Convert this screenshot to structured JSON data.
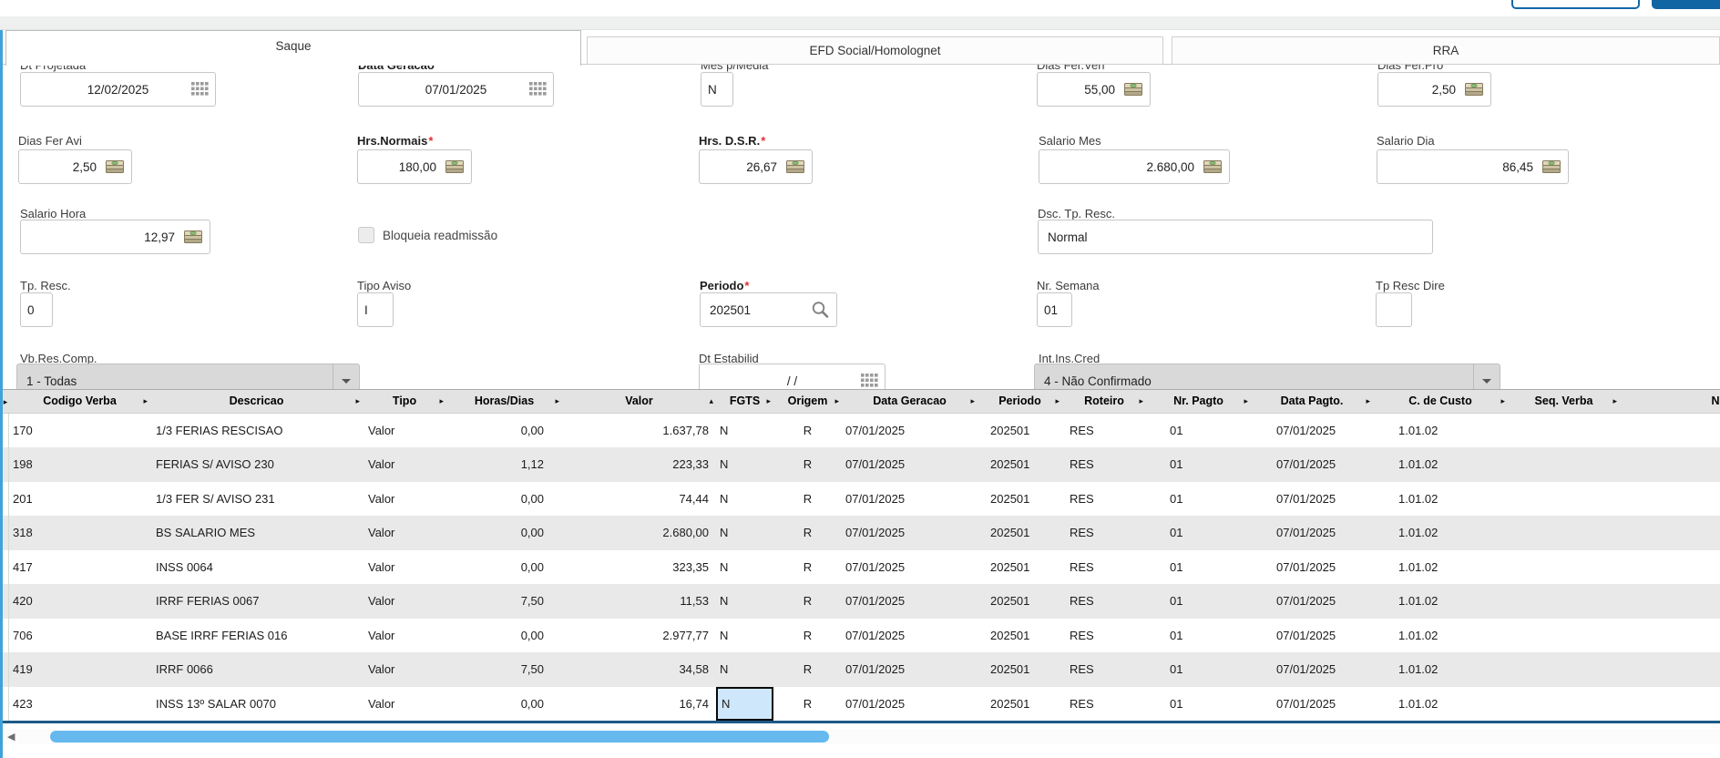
{
  "tabs": [
    {
      "label": "Saque",
      "active": true
    },
    {
      "label": "EFD Social/Homolognet",
      "active": false
    },
    {
      "label": "RRA",
      "active": false
    }
  ],
  "required_mark": "*",
  "form": {
    "dt_projetada": {
      "label": "Dt Projetada",
      "value": "12/02/2025"
    },
    "data_geracao": {
      "label": "Data Geracao",
      "value": "07/01/2025"
    },
    "mes_p_media": {
      "label": "Mes p/Media",
      "value": "N"
    },
    "dias_fer_ven": {
      "label": "Dias Fer.Ven",
      "value": "55,00"
    },
    "dias_fer_pro": {
      "label": "Dias Fer.Pro",
      "value": "2,50"
    },
    "dias_fer_avi": {
      "label": "Dias Fer Avi",
      "value": "2,50"
    },
    "hrs_normais": {
      "label": "Hrs.Normais",
      "value": "180,00",
      "required": true
    },
    "hrs_dsr": {
      "label": "Hrs. D.S.R.",
      "value": "26,67",
      "required": true
    },
    "salario_mes": {
      "label": "Salario Mes",
      "value": "2.680,00"
    },
    "salario_dia": {
      "label": "Salario Dia",
      "value": "86,45"
    },
    "salario_hora": {
      "label": "Salario Hora",
      "value": "12,97"
    },
    "bloqueia_readmissao": {
      "label": "Bloqueia readmissão",
      "checked": false
    },
    "dsc_tp_resc": {
      "label": "Dsc. Tp. Resc.",
      "value": "Normal"
    },
    "tp_resc": {
      "label": "Tp. Resc.",
      "value": "0"
    },
    "tipo_aviso": {
      "label": "Tipo Aviso",
      "value": "I"
    },
    "periodo": {
      "label": "Periodo",
      "value": "202501",
      "required": true
    },
    "nr_semana": {
      "label": "Nr. Semana",
      "value": "01"
    },
    "tp_resc_dire": {
      "label": "Tp Resc Dire",
      "value": ""
    },
    "vb_res_comp": {
      "label": "Vb.Res.Comp.",
      "value": "1 - Todas"
    },
    "dt_estabilid": {
      "label": "Dt Estabilid",
      "value": "/  /"
    },
    "int_ins_cred": {
      "label": "Int.Ins.Cred",
      "value": "4 - Não Confirmado"
    }
  },
  "grid": {
    "columns": [
      {
        "label": "Codigo Verba"
      },
      {
        "label": "Descricao"
      },
      {
        "label": "Tipo"
      },
      {
        "label": "Horas/Dias"
      },
      {
        "label": "Valor",
        "sorted": "asc"
      },
      {
        "label": "FGTS"
      },
      {
        "label": "Origem"
      },
      {
        "label": "Data Geracao"
      },
      {
        "label": "Periodo"
      },
      {
        "label": "Roteiro"
      },
      {
        "label": "Nr. Pagto"
      },
      {
        "label": "Data Pagto."
      },
      {
        "label": "C. de Custo"
      },
      {
        "label": "Seq. Verba"
      }
    ],
    "next_column_fragment": "N",
    "rows": [
      [
        "170",
        "1/3 FERIAS RESCISAO",
        "Valor",
        "0,00",
        "1.637,78",
        "N",
        "R",
        "07/01/2025",
        "202501",
        "RES",
        "01",
        "07/01/2025",
        "1.01.02",
        ""
      ],
      [
        "198",
        "FERIAS S/ AVISO 230",
        "Valor",
        "1,12",
        "223,33",
        "N",
        "R",
        "07/01/2025",
        "202501",
        "RES",
        "01",
        "07/01/2025",
        "1.01.02",
        ""
      ],
      [
        "201",
        "1/3 FER S/ AVISO 231",
        "Valor",
        "0,00",
        "74,44",
        "N",
        "R",
        "07/01/2025",
        "202501",
        "RES",
        "01",
        "07/01/2025",
        "1.01.02",
        ""
      ],
      [
        "318",
        "BS SALARIO MES",
        "Valor",
        "0,00",
        "2.680,00",
        "N",
        "R",
        "07/01/2025",
        "202501",
        "RES",
        "01",
        "07/01/2025",
        "1.01.02",
        ""
      ],
      [
        "417",
        "INSS 0064",
        "Valor",
        "0,00",
        "323,35",
        "N",
        "R",
        "07/01/2025",
        "202501",
        "RES",
        "01",
        "07/01/2025",
        "1.01.02",
        ""
      ],
      [
        "420",
        "IRRF FERIAS 0067",
        "Valor",
        "7,50",
        "11,53",
        "N",
        "R",
        "07/01/2025",
        "202501",
        "RES",
        "01",
        "07/01/2025",
        "1.01.02",
        ""
      ],
      [
        "706",
        "BASE IRRF FERIAS 016",
        "Valor",
        "0,00",
        "2.977,77",
        "N",
        "R",
        "07/01/2025",
        "202501",
        "RES",
        "01",
        "07/01/2025",
        "1.01.02",
        ""
      ],
      [
        "419",
        "IRRF 0066",
        "Valor",
        "7,50",
        "34,58",
        "N",
        "R",
        "07/01/2025",
        "202501",
        "RES",
        "01",
        "07/01/2025",
        "1.01.02",
        ""
      ],
      [
        "423",
        "INSS 13º SALAR 0070",
        "Valor",
        "0,00",
        "16,74",
        "N",
        "R",
        "07/01/2025",
        "202501",
        "RES",
        "01",
        "07/01/2025",
        "1.01.02",
        ""
      ]
    ],
    "selected_cell": {
      "row": 8,
      "col": 5
    }
  },
  "icons": {
    "calendar-icon": "grid-of-dots",
    "money-icon": "banknote-stack",
    "search-icon": "magnifier",
    "caret-down-icon": "▼",
    "sort-asc-icon": "▴",
    "column-filter-icon": "▸",
    "scroll-left-arrow-icon": "◄"
  },
  "colors": {
    "primary_blue": "#1165a3",
    "panel_accent": "#3fa3d9",
    "grid_header_bg": "#e3e3e3",
    "grid_alt_row": "#e9e9e9",
    "selected_cell_bg": "#cfe7fa",
    "grid_bottom_line": "#1c5a87",
    "scrollbar_thumb": "#66b9ef",
    "required_asterisk": "#e03030"
  }
}
